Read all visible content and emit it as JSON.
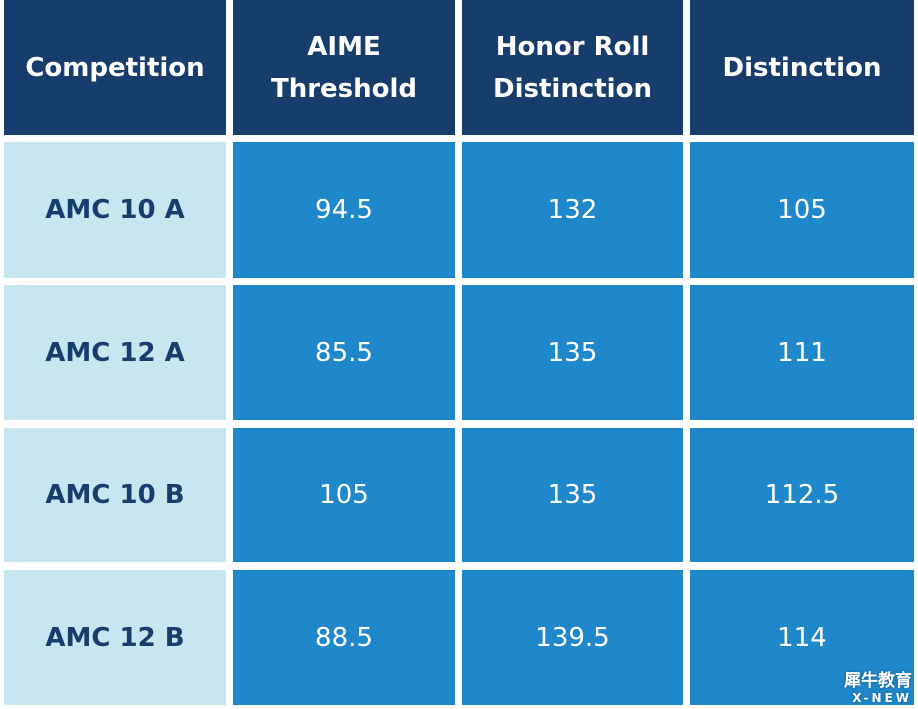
{
  "table": {
    "header": [
      "Competition",
      "AIME Threshold",
      "Honor Roll Distinction",
      "Distinction"
    ],
    "rows": [
      [
        "AMC 10 A",
        94.5,
        132,
        105
      ],
      [
        "AMC 12 A",
        85.5,
        135,
        111
      ],
      [
        "AMC 10 B",
        105,
        135,
        112.5
      ],
      [
        "AMC 12 B",
        88.5,
        139.5,
        114
      ]
    ]
  },
  "watermark": {
    "brand": "犀牛教育",
    "sub": "X-NEW"
  }
}
